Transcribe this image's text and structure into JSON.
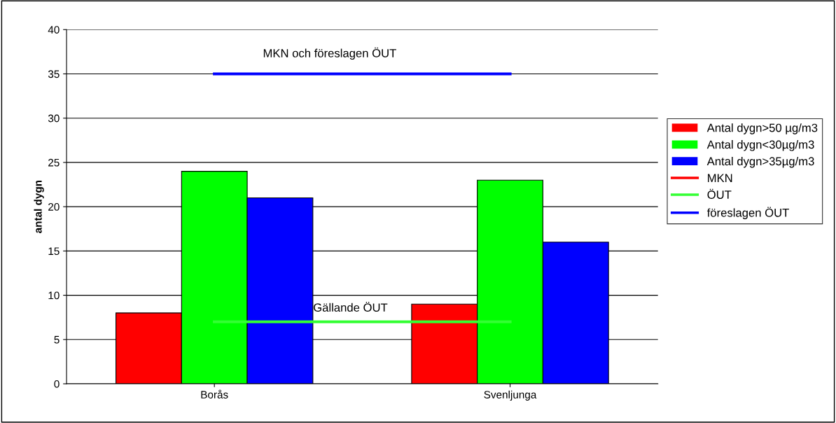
{
  "chart_data": {
    "type": "bar",
    "ylabel": "antal dygn",
    "categories": [
      "Borås",
      "Svenljunga"
    ],
    "series": [
      {
        "name": "Antal dygn>50 µg/m3",
        "color": "#ff0000",
        "values": [
          8,
          9
        ]
      },
      {
        "name": "Antal dygn<30µg/m3",
        "color": "#00ff00",
        "values": [
          24,
          23
        ]
      },
      {
        "name": "Antal dygn>35µg/m3",
        "color": "#0000ff",
        "values": [
          21,
          16
        ]
      },
      {
        "name": "MKN",
        "type": "line",
        "color": "#ff0000",
        "values": [
          null,
          null
        ]
      },
      {
        "name": "ÖUT",
        "type": "line",
        "color": "#33ff33",
        "values": [
          7,
          7
        ]
      },
      {
        "name": "föreslagen ÖUT",
        "type": "line",
        "color": "#0000ff",
        "values": [
          35,
          35
        ]
      }
    ],
    "annotations": [
      "MKN och föreslagen ÖUT",
      "Gällande ÖUT"
    ],
    "ylim": [
      0,
      40
    ],
    "yticks": [
      0,
      5,
      10,
      15,
      20,
      25,
      30,
      35,
      40
    ],
    "grid": "y",
    "legend": "right"
  }
}
